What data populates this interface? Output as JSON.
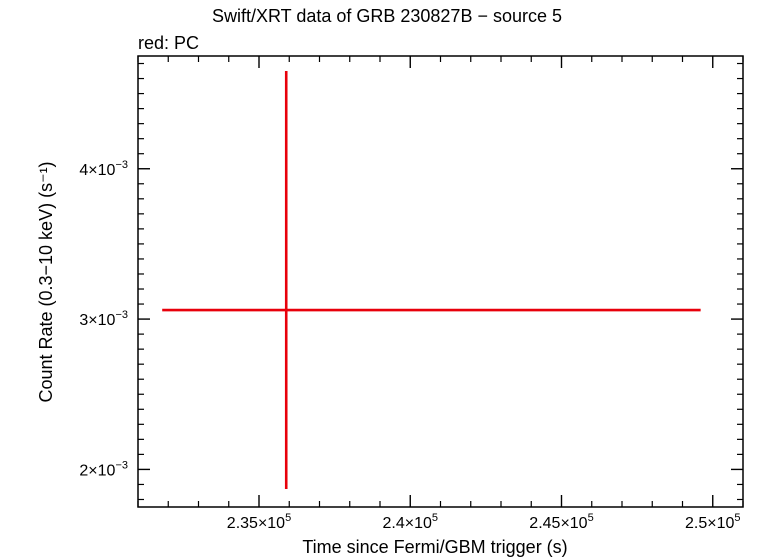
{
  "chart_data": {
    "type": "scatter",
    "title": "Swift/XRT data of GRB 230827B − source 5",
    "subtitle": "red: PC",
    "xlabel": "Time since Fermi/GBM trigger (s)",
    "ylabel": "Count Rate (0.3−10 keV) (s⁻¹)",
    "xlim": [
      231000,
      251000
    ],
    "ylim": [
      0.00175,
      0.00475
    ],
    "x_ticks": [
      {
        "value": 235000,
        "mantissa": "2.35",
        "exponent": "5"
      },
      {
        "value": 240000,
        "mantissa": "2.4",
        "exponent": "5"
      },
      {
        "value": 245000,
        "mantissa": "2.45",
        "exponent": "5"
      },
      {
        "value": 250000,
        "mantissa": "2.5",
        "exponent": "5"
      }
    ],
    "y_ticks": [
      {
        "value": 0.002,
        "mantissa": "2",
        "exponent": "−3"
      },
      {
        "value": 0.003,
        "mantissa": "3",
        "exponent": "−3"
      },
      {
        "value": 0.004,
        "mantissa": "4",
        "exponent": "−3"
      }
    ],
    "series": [
      {
        "color": "#e8000b",
        "points": [
          {
            "x": 235900,
            "x_lo": 231800,
            "x_hi": 249600,
            "y": 0.00306,
            "y_lo": 0.00187,
            "y_hi": 0.00465
          }
        ]
      }
    ]
  }
}
